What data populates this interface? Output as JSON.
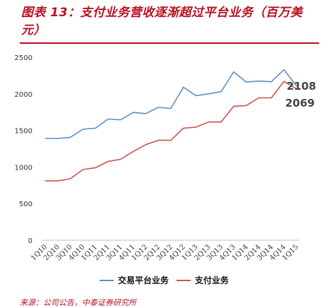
{
  "header": {
    "title": "图表 13：支付业务营收逐渐超过平台业务（百万美元）",
    "source": "来源：公司公告，中泰证券研究所"
  },
  "chart_data": {
    "type": "line",
    "title": "",
    "xlabel": "",
    "ylabel": "",
    "ylim": [
      0,
      2500
    ],
    "yticks": [
      "0",
      "500",
      "1000",
      "1500",
      "2000",
      "2500"
    ],
    "grid": false,
    "legend_position": "bottom",
    "categories": [
      "1Q10",
      "2Q10",
      "3Q10",
      "4Q10",
      "1Q11",
      "2Q11",
      "3Q11",
      "4Q11",
      "1Q12",
      "2Q12",
      "3Q12",
      "4Q12",
      "1Q13",
      "2Q13",
      "3Q13",
      "4Q13",
      "1Q14",
      "2Q14",
      "3Q14",
      "4Q14",
      "1Q15"
    ],
    "series": [
      {
        "name": "交易平台业务",
        "color": "#5b8ec9",
        "values": [
          1390,
          1390,
          1405,
          1515,
          1530,
          1655,
          1645,
          1745,
          1730,
          1815,
          1800,
          2090,
          1975,
          2000,
          2030,
          2300,
          2160,
          2175,
          2165,
          2330,
          2108
        ]
      },
      {
        "name": "支付业务",
        "color": "#c9544f",
        "values": [
          810,
          810,
          840,
          965,
          990,
          1075,
          1105,
          1210,
          1305,
          1365,
          1365,
          1530,
          1545,
          1615,
          1615,
          1830,
          1840,
          1945,
          1945,
          2170,
          2069
        ]
      }
    ],
    "data_labels": [
      "2108",
      "2069"
    ]
  }
}
